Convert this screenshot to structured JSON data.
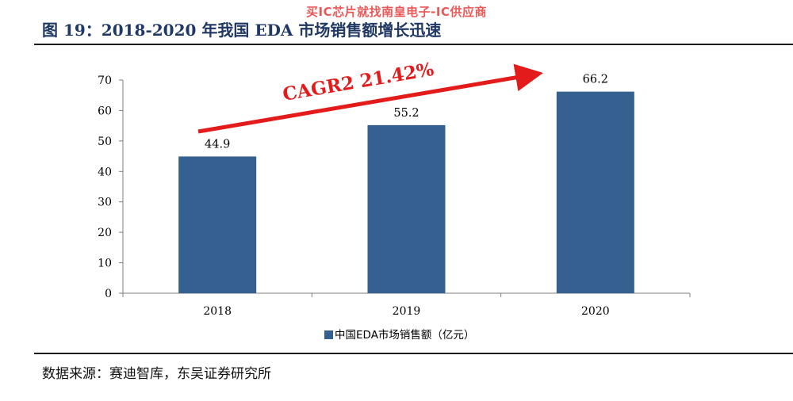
{
  "watermark": "买IC芯片就找南皇电子-IC供应商",
  "figure_title": "图 19：2018-2020 年我国 EDA 市场销售额增长迅速",
  "source": "数据来源：赛迪智库，东吴证券研究所",
  "chart_data": {
    "type": "bar",
    "categories": [
      "2018",
      "2019",
      "2020"
    ],
    "series": [
      {
        "name": "中国EDA市场销售额（亿元）",
        "values": [
          44.9,
          55.2,
          66.2
        ]
      }
    ],
    "data_labels": [
      "44.9",
      "55.2",
      "66.2"
    ],
    "ylim": [
      0,
      70
    ],
    "yticks": [
      0,
      10,
      20,
      30,
      40,
      50,
      60,
      70
    ],
    "annotation": "CAGR2 21.42%",
    "grid": false,
    "legend_position": "bottom",
    "colors": {
      "bar": "#35608f",
      "arrow": "#e31b1b",
      "axis": "#7f7f7f"
    }
  }
}
